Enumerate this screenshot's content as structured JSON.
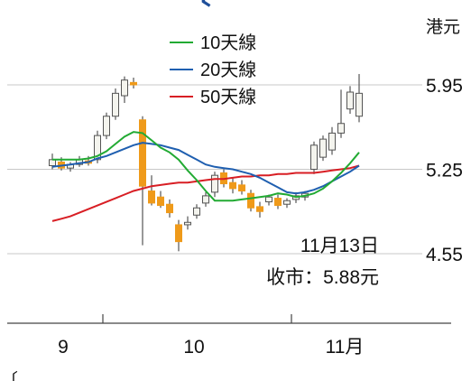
{
  "chart_data": {
    "type": "candlestick",
    "unit_label": "港元",
    "y_ticks": [
      5.95,
      5.25,
      4.55
    ],
    "ylim": [
      4.45,
      6.05
    ],
    "x_month_labels": [
      "9",
      "10",
      "11月"
    ],
    "annotation": {
      "date": "11月13日",
      "close_text": "收市：5.88元"
    },
    "colors": {
      "up": "#f4f4ee",
      "down": "#ef9a1a",
      "wick": "#555555",
      "ma10": "#22aa33",
      "ma20": "#1f5fb0",
      "ma50": "#d81e24",
      "grid": "#c8c8c8"
    },
    "series": [
      {
        "name": "10天線",
        "color": "#22aa33",
        "values": [
          5.33,
          5.33,
          5.33,
          5.33,
          5.34,
          5.36,
          5.4,
          5.46,
          5.52,
          5.56,
          5.55,
          5.49,
          5.43,
          5.39,
          5.33,
          5.24,
          5.16,
          5.07,
          4.99,
          4.99,
          4.99,
          5.0,
          5.01,
          5.02,
          5.03,
          5.05,
          5.04,
          5.02,
          5.03,
          5.05,
          5.09,
          5.15,
          5.22,
          5.3,
          5.39
        ]
      },
      {
        "name": "20天線",
        "color": "#1f5fb0",
        "values": [
          5.27,
          5.28,
          5.29,
          5.3,
          5.31,
          5.34,
          5.36,
          5.39,
          5.42,
          5.45,
          5.47,
          5.46,
          5.45,
          5.43,
          5.41,
          5.37,
          5.33,
          5.29,
          5.27,
          5.26,
          5.25,
          5.23,
          5.21,
          5.18,
          5.14,
          5.1,
          5.06,
          5.05,
          5.06,
          5.08,
          5.11,
          5.15,
          5.19,
          5.23,
          5.28
        ]
      },
      {
        "name": "50天線",
        "color": "#d81e24",
        "values": [
          4.82,
          4.84,
          4.86,
          4.89,
          4.92,
          4.95,
          4.98,
          5.01,
          5.04,
          5.07,
          5.09,
          5.11,
          5.12,
          5.13,
          5.14,
          5.14,
          5.15,
          5.16,
          5.17,
          5.17,
          5.18,
          5.19,
          5.19,
          5.2,
          5.2,
          5.21,
          5.21,
          5.22,
          5.22,
          5.22,
          5.23,
          5.24,
          5.25,
          5.26,
          5.28
        ]
      }
    ],
    "candles": [
      {
        "o": 5.28,
        "h": 5.38,
        "l": 5.25,
        "c": 5.33
      },
      {
        "o": 5.31,
        "h": 5.35,
        "l": 5.24,
        "c": 5.26
      },
      {
        "o": 5.26,
        "h": 5.31,
        "l": 5.23,
        "c": 5.29
      },
      {
        "o": 5.29,
        "h": 5.36,
        "l": 5.27,
        "c": 5.33
      },
      {
        "o": 5.32,
        "h": 5.36,
        "l": 5.28,
        "c": 5.3
      },
      {
        "o": 5.33,
        "h": 5.57,
        "l": 5.3,
        "c": 5.53
      },
      {
        "o": 5.53,
        "h": 5.72,
        "l": 5.5,
        "c": 5.69
      },
      {
        "o": 5.69,
        "h": 5.92,
        "l": 5.66,
        "c": 5.88
      },
      {
        "o": 5.86,
        "h": 6.02,
        "l": 5.8,
        "c": 5.99
      },
      {
        "o": 5.97,
        "h": 6.01,
        "l": 5.92,
        "c": 5.95
      },
      {
        "o": 5.66,
        "h": 5.69,
        "l": 4.62,
        "c": 5.11
      },
      {
        "o": 5.07,
        "h": 5.2,
        "l": 4.95,
        "c": 4.97
      },
      {
        "o": 5.02,
        "h": 5.07,
        "l": 4.93,
        "c": 4.95
      },
      {
        "o": 4.96,
        "h": 5.0,
        "l": 4.85,
        "c": 4.89
      },
      {
        "o": 4.79,
        "h": 4.83,
        "l": 4.57,
        "c": 4.65
      },
      {
        "o": 4.79,
        "h": 4.86,
        "l": 4.75,
        "c": 4.81
      },
      {
        "o": 4.87,
        "h": 4.96,
        "l": 4.84,
        "c": 4.93
      },
      {
        "o": 4.97,
        "h": 5.06,
        "l": 4.94,
        "c": 5.03
      },
      {
        "o": 5.06,
        "h": 5.23,
        "l": 5.02,
        "c": 5.2
      },
      {
        "o": 5.22,
        "h": 5.25,
        "l": 5.1,
        "c": 5.13
      },
      {
        "o": 5.14,
        "h": 5.18,
        "l": 5.05,
        "c": 5.09
      },
      {
        "o": 5.12,
        "h": 5.16,
        "l": 5.04,
        "c": 5.07
      },
      {
        "o": 5.05,
        "h": 5.08,
        "l": 4.9,
        "c": 4.93
      },
      {
        "o": 4.94,
        "h": 4.98,
        "l": 4.85,
        "c": 4.9
      },
      {
        "o": 4.98,
        "h": 5.04,
        "l": 4.95,
        "c": 5.02
      },
      {
        "o": 5.01,
        "h": 5.04,
        "l": 4.92,
        "c": 4.95
      },
      {
        "o": 4.96,
        "h": 5.01,
        "l": 4.93,
        "c": 4.99
      },
      {
        "o": 5.0,
        "h": 5.06,
        "l": 4.97,
        "c": 5.03
      },
      {
        "o": 5.02,
        "h": 5.07,
        "l": 4.99,
        "c": 5.05
      },
      {
        "o": 5.25,
        "h": 5.48,
        "l": 5.21,
        "c": 5.45
      },
      {
        "o": 5.35,
        "h": 5.53,
        "l": 5.32,
        "c": 5.5
      },
      {
        "o": 5.41,
        "h": 5.6,
        "l": 5.37,
        "c": 5.55
      },
      {
        "o": 5.55,
        "h": 5.91,
        "l": 5.51,
        "c": 5.63
      },
      {
        "o": 5.75,
        "h": 5.94,
        "l": 5.71,
        "c": 5.89
      },
      {
        "o": 5.69,
        "h": 6.04,
        "l": 5.64,
        "c": 5.88
      }
    ]
  }
}
